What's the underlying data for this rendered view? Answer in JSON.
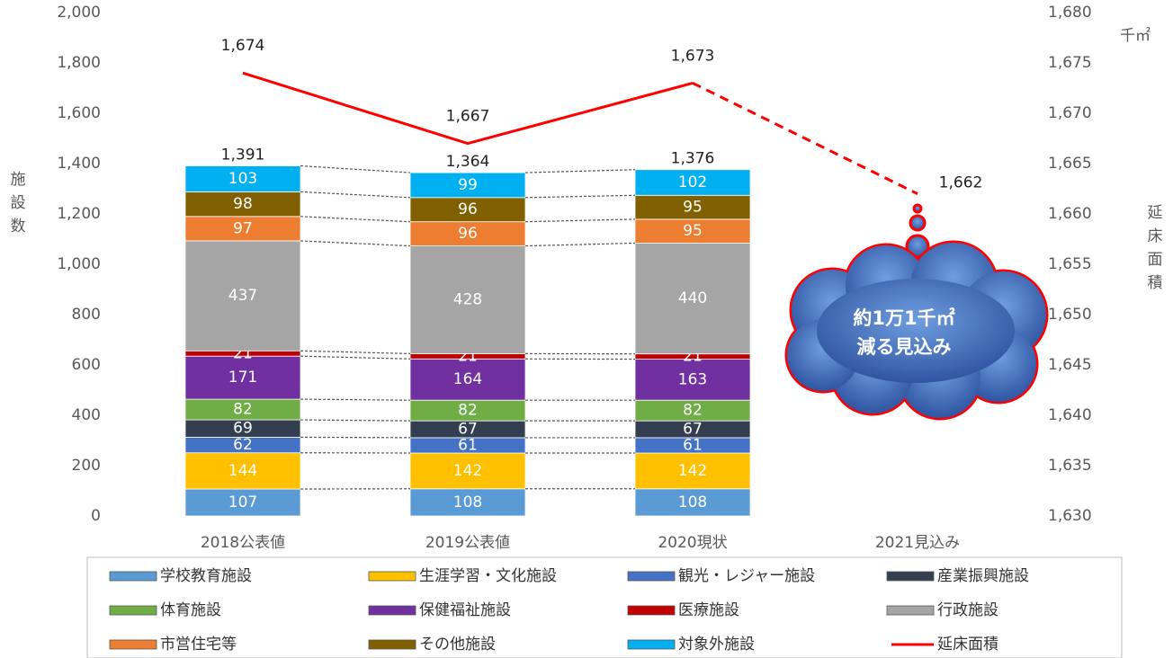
{
  "chart_data": {
    "type": "stacked-bar-line",
    "categories": [
      "2018公表値",
      "2019公表値",
      "2020現状",
      "2021見込み"
    ],
    "series": [
      {
        "name": "学校教育施設",
        "color": "#5b9bd5",
        "values": [
          107,
          108,
          108,
          null
        ]
      },
      {
        "name": "生涯学習・文化施設",
        "color": "#ffc000",
        "values": [
          144,
          142,
          142,
          null
        ]
      },
      {
        "name": "観光・レジャー施設",
        "color": "#4472c4",
        "values": [
          62,
          61,
          61,
          null
        ]
      },
      {
        "name": "産業振興施設",
        "color": "#333f50",
        "values": [
          69,
          67,
          67,
          null
        ]
      },
      {
        "name": "体育施設",
        "color": "#70ad47",
        "values": [
          82,
          82,
          82,
          null
        ]
      },
      {
        "name": "保健福祉施設",
        "color": "#7030a0",
        "values": [
          171,
          164,
          163,
          null
        ]
      },
      {
        "name": "医療施設",
        "color": "#c00000",
        "values": [
          21,
          21,
          21,
          null
        ]
      },
      {
        "name": "行政施設",
        "color": "#a5a5a5",
        "values": [
          437,
          428,
          440,
          null
        ]
      },
      {
        "name": "市営住宅等",
        "color": "#ed7d31",
        "values": [
          97,
          96,
          95,
          null
        ]
      },
      {
        "name": "その他施設",
        "color": "#806000",
        "values": [
          98,
          96,
          95,
          null
        ]
      },
      {
        "name": "対象外施設",
        "color": "#00b0f0",
        "values": [
          103,
          99,
          102,
          null
        ]
      },
      {
        "name": "延床面積",
        "color": "#ff0000",
        "type": "line",
        "axis": "y2",
        "values": [
          1674,
          1667,
          1673,
          1662
        ],
        "value_labels": [
          "1,674",
          "1,667",
          "1,673",
          "1,662"
        ],
        "dash_last_segment": true
      }
    ],
    "totals": [
      1391,
      1364,
      1376,
      null
    ],
    "total_labels": [
      "1,391",
      "1,364",
      "1,376",
      null
    ],
    "ylabel": "施設数",
    "y2label": "延床面積",
    "y2unit": "千㎡",
    "ylim": [
      0,
      2000
    ],
    "yticks": [
      0,
      200,
      400,
      600,
      800,
      {
        "value": 1000,
        "label": "1,000"
      },
      {
        "value": 1200,
        "label": "1,200"
      },
      {
        "value": 1400,
        "label": "1,400"
      },
      {
        "value": 1600,
        "label": "1,600"
      },
      {
        "value": 1800,
        "label": "1,800"
      },
      {
        "value": 2000,
        "label": "2,000"
      }
    ],
    "y2lim": [
      1630,
      1680
    ],
    "y2ticks": [
      {
        "value": 1630,
        "label": "1,630"
      },
      {
        "value": 1635,
        "label": "1,635"
      },
      {
        "value": 1640,
        "label": "1,640"
      },
      {
        "value": 1645,
        "label": "1,645"
      },
      {
        "value": 1650,
        "label": "1,650"
      },
      {
        "value": 1655,
        "label": "1,655"
      },
      {
        "value": 1660,
        "label": "1,660"
      },
      {
        "value": 1665,
        "label": "1,665"
      },
      {
        "value": 1670,
        "label": "1,670"
      },
      {
        "value": 1675,
        "label": "1,675"
      },
      {
        "value": 1680,
        "label": "1,680"
      }
    ],
    "annotation": [
      "約1万1千㎡",
      "減る見込み"
    ],
    "legend": "bottom",
    "grid": false
  }
}
